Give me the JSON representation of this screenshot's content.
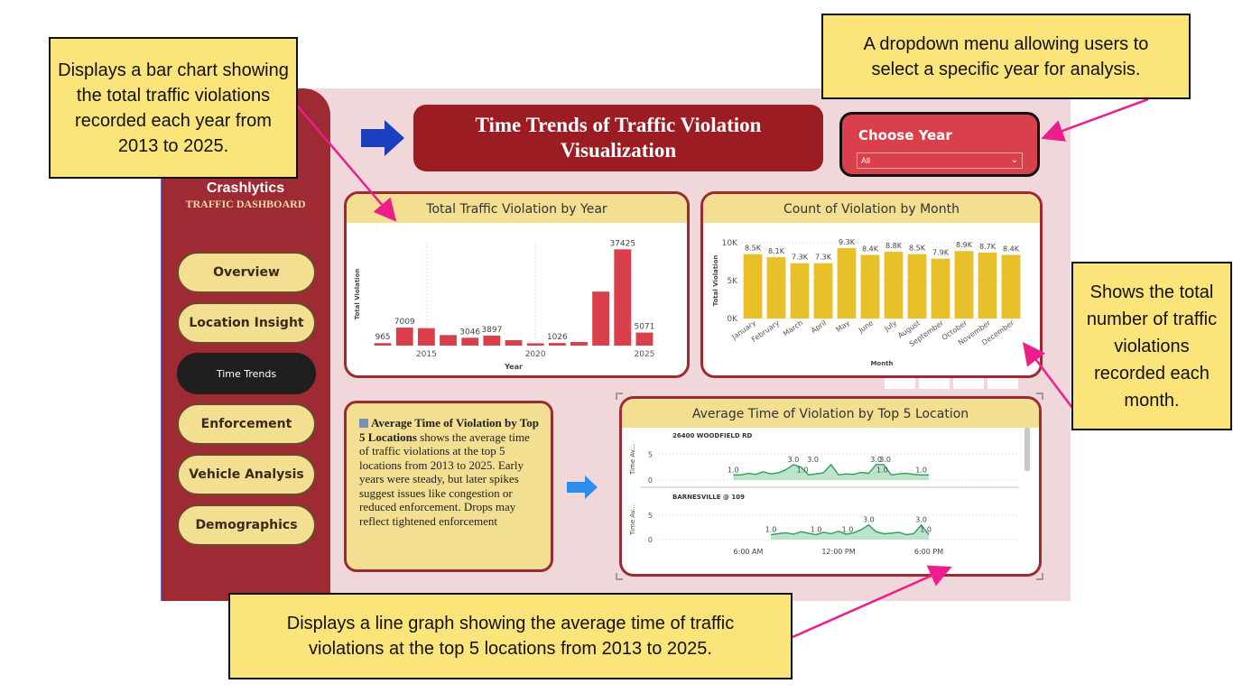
{
  "callouts": {
    "bar_year": "Displays a bar chart showing the total traffic violations recorded each year from 2013 to 2025.",
    "dropdown": "A dropdown menu allowing users to select a specific year for analysis.",
    "month": "Shows the total number of traffic violations recorded each month.",
    "line": "Displays a line graph showing the average time of traffic violations at the top 5 locations from 2013 to 2025."
  },
  "sidebar": {
    "brand": "Crashlytics",
    "subtitle": "TRAFFIC DASHBOARD",
    "items": [
      {
        "label": "Overview"
      },
      {
        "label": "Location Insight"
      },
      {
        "label": "Time Trends"
      },
      {
        "label": "Enforcement"
      },
      {
        "label": "Vehicle Analysis"
      },
      {
        "label": "Demographics"
      }
    ],
    "active_index": 2
  },
  "header": {
    "title_line1": "Time Trends of Traffic Violation",
    "title_line2": "Visualization"
  },
  "filter": {
    "label": "Choose Year",
    "value": "All"
  },
  "note": {
    "bold": "Average Time of Violation by Top 5 Locations",
    "text": " shows the average time of traffic violations at the top 5 locations from 2013 to 2025. Early years were steady, but later spikes suggest issues like congestion or reduced enforcement. Drops may reflect tightened enforcement"
  },
  "colors": {
    "sidebar": "#9e2a33",
    "title_bg": "#9b1c22",
    "bar_red": "#d9404c",
    "bar_gold": "#e8c12a",
    "line_green": "#2e9e5c",
    "header_gold": "#f2df92"
  },
  "chart_data": [
    {
      "type": "bar",
      "title": "Total Traffic Violation by Year",
      "xlabel": "Year",
      "ylabel": "Total Violation",
      "x": [
        2013,
        2014,
        2015,
        2016,
        2017,
        2018,
        2019,
        2020,
        2021,
        2022,
        2023,
        2024,
        2025
      ],
      "values": [
        965,
        7009,
        6800,
        4100,
        3046,
        3897,
        2100,
        900,
        1026,
        1400,
        21000,
        37425,
        5071
      ],
      "labels": [
        "965",
        "7009",
        "",
        "",
        "3046",
        "3897",
        "",
        "",
        "1026",
        "",
        "",
        "37425",
        "5071"
      ],
      "xticks": [
        "2015",
        "2020",
        "2025"
      ],
      "ylim": [
        0,
        40000
      ],
      "grid": false
    },
    {
      "type": "bar",
      "title": "Count of Violation by Month",
      "xlabel": "Month",
      "ylabel": "Total Violation",
      "categories": [
        "January",
        "February",
        "March",
        "April",
        "May",
        "June",
        "July",
        "August",
        "September",
        "October",
        "November",
        "December"
      ],
      "values": [
        8500,
        8100,
        7300,
        7300,
        9300,
        8400,
        8800,
        8500,
        7900,
        8900,
        8700,
        8400
      ],
      "labels": [
        "8.5K",
        "8.1K",
        "7.3K",
        "7.3K",
        "9.3K",
        "8.4K",
        "8.8K",
        "8.5K",
        "7.9K",
        "8.9K",
        "8.7K",
        "8.4K"
      ],
      "yticks": [
        "0K",
        "5K",
        "10K"
      ],
      "ylim": [
        0,
        10000
      ]
    },
    {
      "type": "area",
      "title": "Average Time of Violation by Top 5 Location",
      "ylabel": "Time Av...",
      "xticks": [
        "6:00 AM",
        "12:00 PM",
        "6:00 PM"
      ],
      "panels": [
        {
          "name": "26400 WOODFIELD RD",
          "yticks": [
            "0",
            "5"
          ],
          "ylim": [
            0,
            7
          ],
          "x": [
            5.0,
            5.5,
            6.0,
            6.5,
            7.0,
            7.5,
            8.0,
            8.5,
            9.0,
            9.5,
            10.0,
            10.5,
            11.0,
            11.5,
            12.0,
            12.5,
            13.0,
            13.5,
            14.0,
            14.5,
            15.0,
            15.5,
            16.0,
            16.5,
            17.0,
            17.5,
            18.0
          ],
          "y": [
            1.0,
            1.0,
            1.3,
            1.1,
            1.6,
            1.2,
            1.4,
            2.0,
            3.0,
            2.5,
            1.0,
            1.2,
            1.4,
            3.0,
            1.0,
            1.2,
            1.1,
            1.5,
            1.3,
            3.0,
            3.0,
            1.0,
            1.2,
            1.3,
            1.1,
            1.0,
            1.0
          ],
          "labels": [
            {
              "x": 5.0,
              "y": 1.0,
              "text": "1.0"
            },
            {
              "x": 9.0,
              "y": 3.0,
              "text": "3.0"
            },
            {
              "x": 9.6,
              "y": 1.0,
              "text": "1.0"
            },
            {
              "x": 10.3,
              "y": 3.0,
              "text": "3.0"
            },
            {
              "x": 14.5,
              "y": 3.0,
              "text": "3.0"
            },
            {
              "x": 15.1,
              "y": 3.0,
              "text": "3.0"
            },
            {
              "x": 14.9,
              "y": 1.0,
              "text": "1.0"
            },
            {
              "x": 17.5,
              "y": 1.0,
              "text": "1.0"
            }
          ]
        },
        {
          "name": "BARNESVILLE @ 109",
          "yticks": [
            "0",
            "5"
          ],
          "ylim": [
            0,
            7
          ],
          "x": [
            7.5,
            8.0,
            8.5,
            9.0,
            9.5,
            10.0,
            10.5,
            11.0,
            11.5,
            12.0,
            12.5,
            13.0,
            13.5,
            14.0,
            14.5,
            15.0,
            15.5,
            16.0,
            16.5,
            17.0,
            17.5,
            18.0
          ],
          "y": [
            1.0,
            1.2,
            1.4,
            1.1,
            1.6,
            1.3,
            1.0,
            1.5,
            1.2,
            1.7,
            1.1,
            1.4,
            2.0,
            3.0,
            1.6,
            1.2,
            1.3,
            1.5,
            1.0,
            1.2,
            3.0,
            1.0
          ],
          "labels": [
            {
              "x": 7.5,
              "y": 1.0,
              "text": "1.0"
            },
            {
              "x": 10.5,
              "y": 1.0,
              "text": "1.0"
            },
            {
              "x": 12.6,
              "y": 1.0,
              "text": "1.0"
            },
            {
              "x": 14.0,
              "y": 3.0,
              "text": "3.0"
            },
            {
              "x": 17.5,
              "y": 3.0,
              "text": "3.0"
            },
            {
              "x": 17.8,
              "y": 1.0,
              "text": "1.0"
            }
          ]
        }
      ]
    }
  ]
}
